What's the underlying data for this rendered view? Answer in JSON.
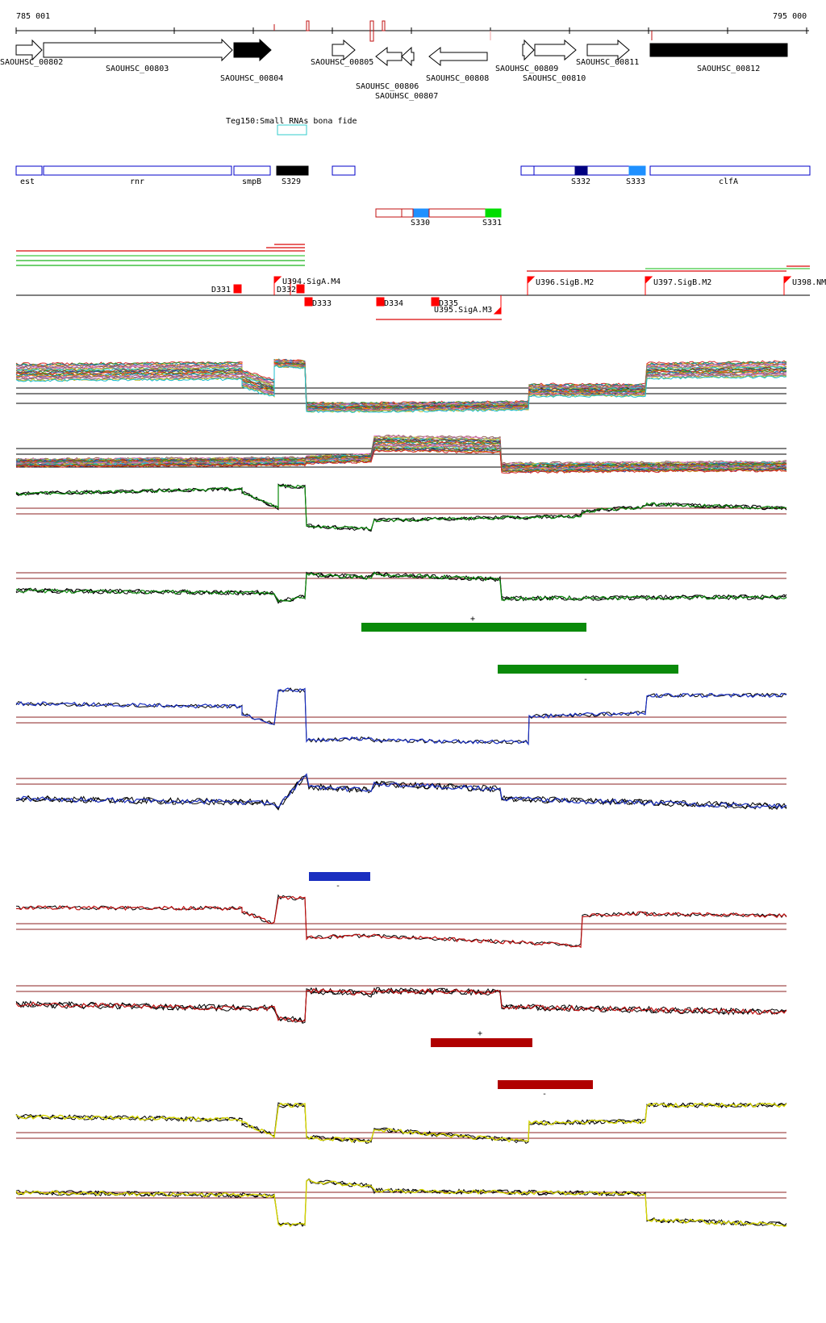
{
  "coords": {
    "start": "785 001",
    "end": "795 000"
  },
  "genes": [
    {
      "id": "SAOUHSC_00802"
    },
    {
      "id": "SAOUHSC_00803"
    },
    {
      "id": "SAOUHSC_00804"
    },
    {
      "id": "SAOUHSC_00805"
    },
    {
      "id": "SAOUHSC_00806"
    },
    {
      "id": "SAOUHSC_00807"
    },
    {
      "id": "SAOUHSC_00808"
    },
    {
      "id": "SAOUHSC_00809"
    },
    {
      "id": "SAOUHSC_00810"
    },
    {
      "id": "SAOUHSC_00811"
    },
    {
      "id": "SAOUHSC_00812"
    }
  ],
  "small_rna_track": {
    "label": "Teg150:Small RNAs bona fide"
  },
  "annotations_plus": [
    {
      "label": "est"
    },
    {
      "label": "rnr"
    },
    {
      "label": "smpB"
    },
    {
      "label": "S329"
    },
    {
      "label": "S332"
    },
    {
      "label": "S333"
    },
    {
      "label": "clfA"
    }
  ],
  "annotations_minus": [
    {
      "label": "S330"
    },
    {
      "label": "S331"
    }
  ],
  "promoters_plus": [
    {
      "label": "D331"
    },
    {
      "label": "D332"
    },
    {
      "label": "U394.SigA.M4"
    },
    {
      "label": "U396.SigB.M2"
    },
    {
      "label": "U397.SigB.M2"
    },
    {
      "label": "U398.NM"
    }
  ],
  "promoters_minus": [
    {
      "label": "D333"
    },
    {
      "label": "D334"
    },
    {
      "label": "D335"
    },
    {
      "label": "U395.SigA.M3"
    }
  ],
  "strand_marks": {
    "plus": "+",
    "minus": "-"
  },
  "colors": {
    "green": "#0a8a0a",
    "blue": "#1a2fc0",
    "red": "#c01010",
    "darkred": "#b00000",
    "yellow": "#d4d400",
    "cyan": "#33cccc",
    "blue_feature": "#0000c8",
    "dark_feature": "#000080",
    "sky_feature": "#1e90ff",
    "lime_feature": "#00dd00"
  }
}
